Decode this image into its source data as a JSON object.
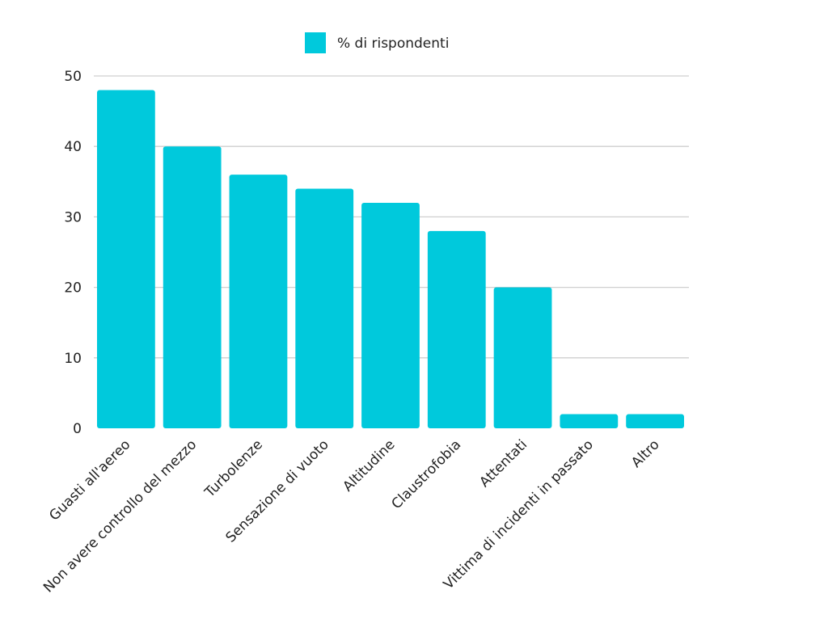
{
  "chart_data": {
    "type": "bar",
    "categories": [
      "Guasti all'aereo",
      "Non avere controllo del mezzo",
      "Turbolenze",
      "Sensazione di vuoto",
      "Altitudine",
      "Claustrofobia",
      "Attentati",
      "Vittima di incidenti in passato",
      "Altro"
    ],
    "series": [
      {
        "name": "% di rispondenti",
        "values": [
          48,
          40,
          36,
          34,
          32,
          28,
          20,
          2,
          2
        ]
      }
    ],
    "ylim": [
      0,
      50
    ],
    "yticks": [
      "0",
      "10",
      "20",
      "30",
      "40",
      "50"
    ],
    "grid": true,
    "legend_position": "top",
    "colors": {
      "bar": "#00c9dc"
    }
  }
}
